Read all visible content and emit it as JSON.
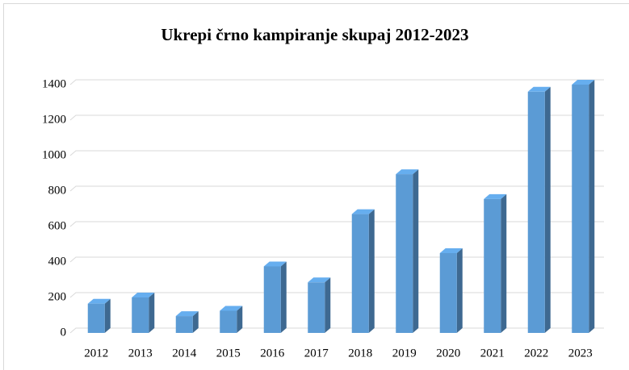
{
  "chart_data": {
    "type": "bar3d",
    "title": "Ukrepi črno kampiranje skupaj 2012-2023",
    "categories": [
      "2012",
      "2013",
      "2014",
      "2015",
      "2016",
      "2017",
      "2018",
      "2019",
      "2020",
      "2021",
      "2022",
      "2023"
    ],
    "values": [
      165,
      200,
      95,
      125,
      375,
      285,
      670,
      895,
      450,
      755,
      1360,
      1400
    ],
    "color": "#5b9bd5",
    "ylim": [
      0,
      1400
    ],
    "yticks": [
      0,
      200,
      400,
      600,
      800,
      1000,
      1200,
      1400
    ],
    "grid": true
  }
}
